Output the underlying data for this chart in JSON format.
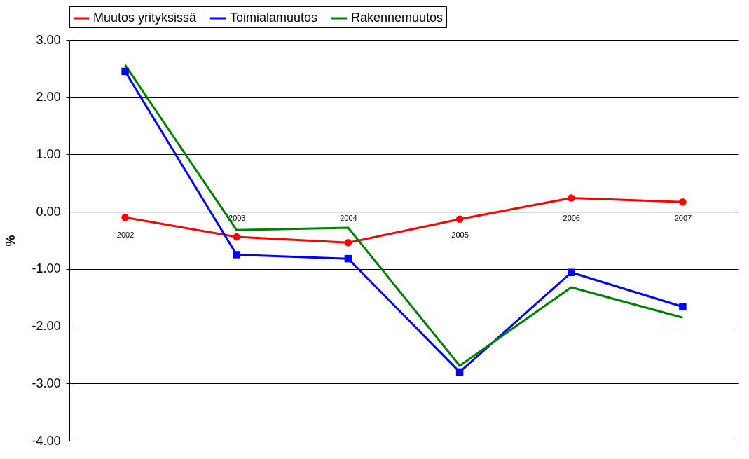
{
  "chart_data": {
    "type": "line",
    "ylabel": "%",
    "categories": [
      "2002",
      "2003",
      "2004",
      "2005",
      "2006",
      "2007"
    ],
    "series": [
      {
        "name": "Muutos yrityksissä",
        "color": "#ff0000",
        "marker": "circle",
        "values": [
          -0.1,
          -0.44,
          -0.54,
          -0.13,
          0.24,
          0.17
        ]
      },
      {
        "name": "Toimialamuutos",
        "color": "#0000ff",
        "marker": "square",
        "values": [
          2.45,
          -0.75,
          -0.82,
          -2.8,
          -1.06,
          -1.66
        ]
      },
      {
        "name": "Rakennemuutos",
        "color": "#008000",
        "marker": "none",
        "values": [
          2.56,
          -0.32,
          -0.28,
          -2.69,
          -1.32,
          -1.85
        ]
      }
    ],
    "ylim": [
      -4,
      3
    ],
    "yticks": [
      {
        "value": -4,
        "label": "-4.00"
      },
      {
        "value": -3,
        "label": "-3.00"
      },
      {
        "value": -2,
        "label": "-2.00"
      },
      {
        "value": -1,
        "label": "-1.00"
      },
      {
        "value": 0,
        "label": "0.00"
      },
      {
        "value": 1,
        "label": "1.00"
      },
      {
        "value": 2,
        "label": "2.00"
      },
      {
        "value": 3,
        "label": "3.00"
      }
    ],
    "grid": "y",
    "legend": "top",
    "line_style": "solid"
  }
}
